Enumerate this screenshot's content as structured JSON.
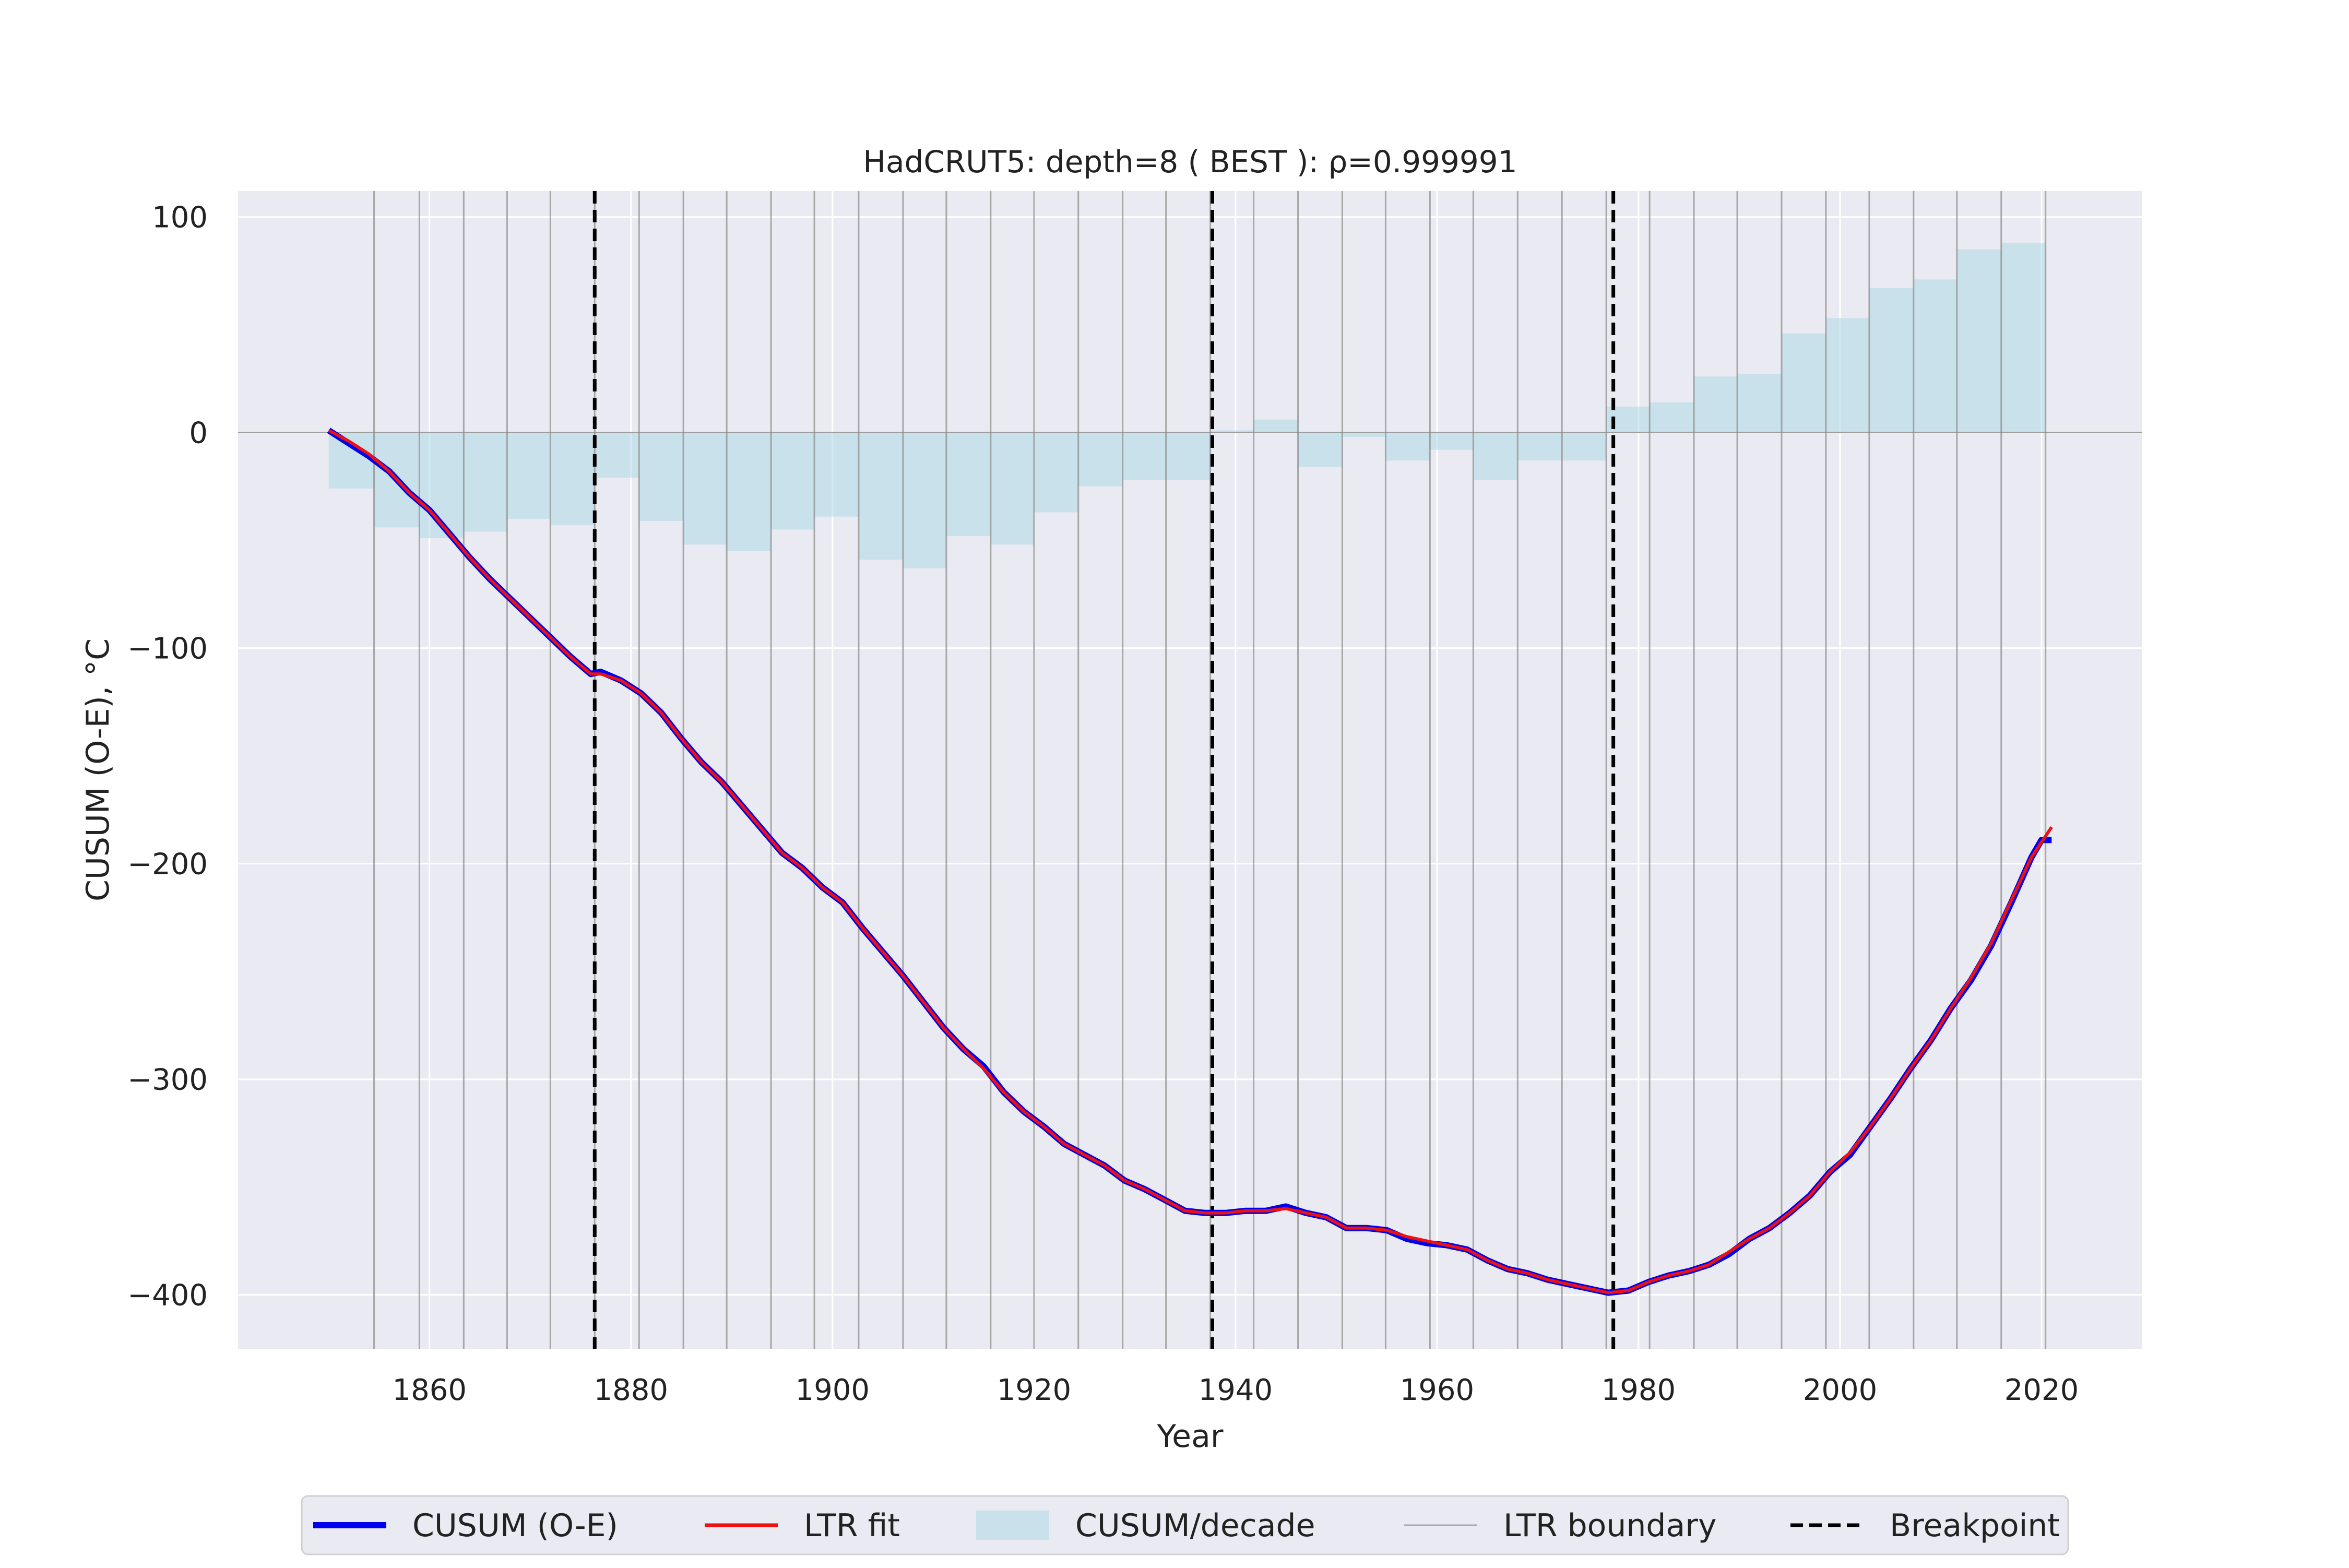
{
  "chart_data": {
    "type": "line",
    "title": "HadCRUT5: depth=8 ( BEST ): ρ=0.999991",
    "xlabel": "Year",
    "ylabel": "CUSUM (O-E), °C",
    "xlim": [
      1841,
      2030
    ],
    "ylim": [
      -425,
      112
    ],
    "xticks": [
      1860,
      1880,
      1900,
      1920,
      1940,
      1960,
      1980,
      2000,
      2020
    ],
    "yticks": [
      100,
      0,
      -100,
      -200,
      -300,
      -400
    ],
    "ytick_labels": [
      "100",
      "0",
      "−100",
      "−200",
      "−300",
      "−400"
    ],
    "grid": true,
    "legend_position": "bottom-center",
    "colors": {
      "cusum": "#0000ee",
      "fit": "#ee1111",
      "bars": "#add8e6",
      "boundary": "#8a8a8a",
      "breakpoint": "#000000",
      "plot_bg": "#eaeaf2"
    },
    "series": [
      {
        "name": "CUSUM (O-E)",
        "x": [
          1850,
          1852,
          1854,
          1856,
          1858,
          1860,
          1862,
          1864,
          1866,
          1868,
          1870,
          1872,
          1874,
          1876,
          1877,
          1879,
          1881,
          1883,
          1885,
          1887,
          1889,
          1891,
          1893,
          1895,
          1897,
          1899,
          1901,
          1903,
          1905,
          1907,
          1909,
          1911,
          1913,
          1915,
          1917,
          1919,
          1921,
          1923,
          1925,
          1927,
          1929,
          1931,
          1933,
          1935,
          1937,
          1939,
          1941,
          1943,
          1945,
          1947,
          1949,
          1951,
          1953,
          1955,
          1957,
          1959,
          1961,
          1963,
          1965,
          1967,
          1969,
          1971,
          1973,
          1975,
          1977,
          1979,
          1981,
          1983,
          1985,
          1987,
          1989,
          1991,
          1993,
          1995,
          1997,
          1999,
          2001,
          2003,
          2005,
          2007,
          2009,
          2011,
          2013,
          2015,
          2017,
          2019,
          2020,
          2021
        ],
        "y": [
          1,
          -5,
          -11,
          -18,
          -28,
          -36,
          -47,
          -58,
          -68,
          -77,
          -86,
          -95,
          -104,
          -112,
          -111,
          -115,
          -121,
          -130,
          -142,
          -153,
          -162,
          -173,
          -184,
          -195,
          -202,
          -211,
          -218,
          -230,
          -241,
          -252,
          -264,
          -276,
          -286,
          -294,
          -306,
          -315,
          -322,
          -330,
          -335,
          -340,
          -347,
          -351,
          -356,
          -361,
          -362,
          -362,
          -361,
          -361,
          -359,
          -362,
          -364,
          -369,
          -369,
          -370,
          -374,
          -376,
          -377,
          -379,
          -384,
          -388,
          -390,
          -393,
          -395,
          -397,
          -399,
          -398,
          -394,
          -391,
          -389,
          -386,
          -381,
          -374,
          -369,
          -362,
          -354,
          -343,
          -335,
          -322,
          -309,
          -295,
          -282,
          -267,
          -254,
          -238,
          -218,
          -197,
          -189,
          -189
        ]
      },
      {
        "name": "LTR fit",
        "x": [
          1850,
          1852,
          1854,
          1856,
          1858,
          1860,
          1862,
          1864,
          1866,
          1868,
          1870,
          1872,
          1874,
          1876,
          1877,
          1879,
          1881,
          1883,
          1885,
          1887,
          1889,
          1891,
          1893,
          1895,
          1897,
          1899,
          1901,
          1903,
          1905,
          1907,
          1909,
          1911,
          1913,
          1915,
          1917,
          1919,
          1921,
          1923,
          1925,
          1927,
          1929,
          1931,
          1933,
          1935,
          1937,
          1939,
          1941,
          1943,
          1945,
          1947,
          1949,
          1951,
          1953,
          1955,
          1957,
          1959,
          1961,
          1963,
          1965,
          1967,
          1969,
          1971,
          1973,
          1975,
          1977,
          1979,
          1981,
          1983,
          1985,
          1987,
          1989,
          1991,
          1993,
          1995,
          1997,
          1999,
          2001,
          2003,
          2005,
          2007,
          2009,
          2011,
          2013,
          2015,
          2017,
          2019,
          2021
        ],
        "y": [
          1,
          -4,
          -10,
          -18,
          -28,
          -36,
          -47,
          -58,
          -68,
          -77,
          -86,
          -95,
          -104,
          -112,
          -112,
          -115,
          -121,
          -130,
          -142,
          -153,
          -162,
          -173,
          -184,
          -195,
          -202,
          -211,
          -218,
          -230,
          -241,
          -252,
          -264,
          -276,
          -286,
          -295,
          -306,
          -315,
          -322,
          -330,
          -335,
          -340,
          -347,
          -351,
          -356,
          -361,
          -362,
          -362,
          -361,
          -361,
          -360,
          -362,
          -364,
          -369,
          -369,
          -370,
          -373,
          -375,
          -377,
          -379,
          -384,
          -388,
          -390,
          -393,
          -395,
          -397,
          -399,
          -398,
          -394,
          -391,
          -389,
          -386,
          -380,
          -374,
          -369,
          -362,
          -354,
          -343,
          -334,
          -322,
          -309,
          -295,
          -282,
          -267,
          -253,
          -237,
          -217,
          -197,
          -183
        ]
      },
      {
        "name": "CUSUM/decade",
        "type": "step-area",
        "edges": [
          1850,
          1854.5,
          1859,
          1863.4,
          1867.7,
          1872,
          1876.4,
          1880.8,
          1885.2,
          1889.5,
          1893.9,
          1898.2,
          1902.6,
          1907,
          1911.3,
          1915.7,
          1920,
          1924.4,
          1928.8,
          1933.1,
          1937.5,
          1941.8,
          1946.2,
          1950.6,
          1954.9,
          1959.3,
          1963.6,
          1968,
          1972.4,
          1976.8,
          1981.1,
          1985.5,
          1989.8,
          1994.2,
          1998.6,
          2002.9,
          2007.3,
          2011.6,
          2016,
          2020.4
        ],
        "values": [
          -26,
          -44,
          -49,
          -46,
          -40,
          -43,
          -21,
          -41,
          -52,
          -55,
          -45,
          -39,
          -59,
          -63,
          -48,
          -52,
          -37,
          -25,
          -22,
          -22,
          1,
          6,
          -16,
          -2,
          -13,
          -8,
          -22,
          -13,
          -13,
          12,
          14,
          26,
          27,
          46,
          53,
          67,
          71,
          85,
          88
        ]
      },
      {
        "name": "LTR boundary",
        "type": "vlines",
        "x": [
          1854.5,
          1859,
          1863.4,
          1867.7,
          1872,
          1876.4,
          1880.8,
          1885.2,
          1889.5,
          1893.9,
          1898.2,
          1902.6,
          1907,
          1911.3,
          1915.7,
          1920,
          1924.4,
          1928.8,
          1933.1,
          1937.5,
          1941.8,
          1946.2,
          1950.6,
          1954.9,
          1959.3,
          1963.6,
          1968,
          1972.4,
          1976.8,
          1981.1,
          1985.5,
          1989.8,
          1994.2,
          1998.6,
          2002.9,
          2007.3,
          2011.6,
          2016,
          2020.4
        ]
      },
      {
        "name": "Breakpoint",
        "type": "vlines",
        "x": [
          1876.4,
          1937.7,
          1977.5
        ]
      }
    ]
  },
  "legend": {
    "items": [
      "CUSUM (O-E)",
      "LTR fit",
      "CUSUM/decade",
      "LTR boundary",
      "Breakpoint"
    ]
  }
}
